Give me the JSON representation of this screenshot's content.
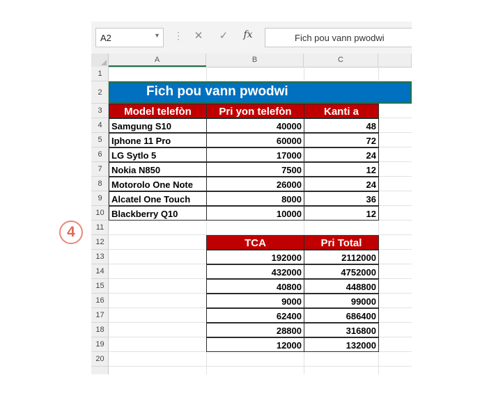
{
  "formula_bar": {
    "name_box": "A2",
    "name_box_arrow": "▾",
    "separator": "⋮",
    "cancel_glyph": "✕",
    "enter_glyph": "✓",
    "fx_glyph": "fx",
    "formula": "Fich pou vann pwodwi"
  },
  "columns": [
    "A",
    "B",
    "C"
  ],
  "rows": [
    "1",
    "2",
    "3",
    "4",
    "5",
    "6",
    "7",
    "8",
    "9",
    "10",
    "11",
    "12",
    "13",
    "14",
    "15",
    "16",
    "17",
    "18",
    "19",
    "20"
  ],
  "title": "Fich pou vann pwodwi",
  "headers": {
    "model": "Model telefòn",
    "price": "Pri yon telefòn",
    "quantity": "Kanti a"
  },
  "products": [
    {
      "model": "Samgung S10",
      "price": "40000",
      "quantity": "48"
    },
    {
      "model": "Iphone 11 Pro",
      "price": "60000",
      "quantity": "72"
    },
    {
      "model": "LG Sytlo 5",
      "price": "17000",
      "quantity": "24"
    },
    {
      "model": "Nokia N850",
      "price": "7500",
      "quantity": "12"
    },
    {
      "model": "Motorolo One Note",
      "price": "26000",
      "quantity": "24"
    },
    {
      "model": "Alcatel One Touch",
      "price": "8000",
      "quantity": "36"
    },
    {
      "model": "Blackberry Q10",
      "price": "10000",
      "quantity": "12"
    }
  ],
  "totals_headers": {
    "tca": "TCA",
    "total": "Pri Total"
  },
  "totals": [
    {
      "tca": "192000",
      "total": "2112000"
    },
    {
      "tca": "432000",
      "total": "4752000"
    },
    {
      "tca": "40800",
      "total": "448800"
    },
    {
      "tca": "9000",
      "total": "99000"
    },
    {
      "tca": "62400",
      "total": "686400"
    },
    {
      "tca": "28800",
      "total": "316800"
    },
    {
      "tca": "12000",
      "total": "132000"
    }
  ],
  "step_badge": "4",
  "colors": {
    "title_fill": "#0070c0",
    "header_fill": "#c00000",
    "selection": "#217346",
    "badge": "#e06a55"
  }
}
